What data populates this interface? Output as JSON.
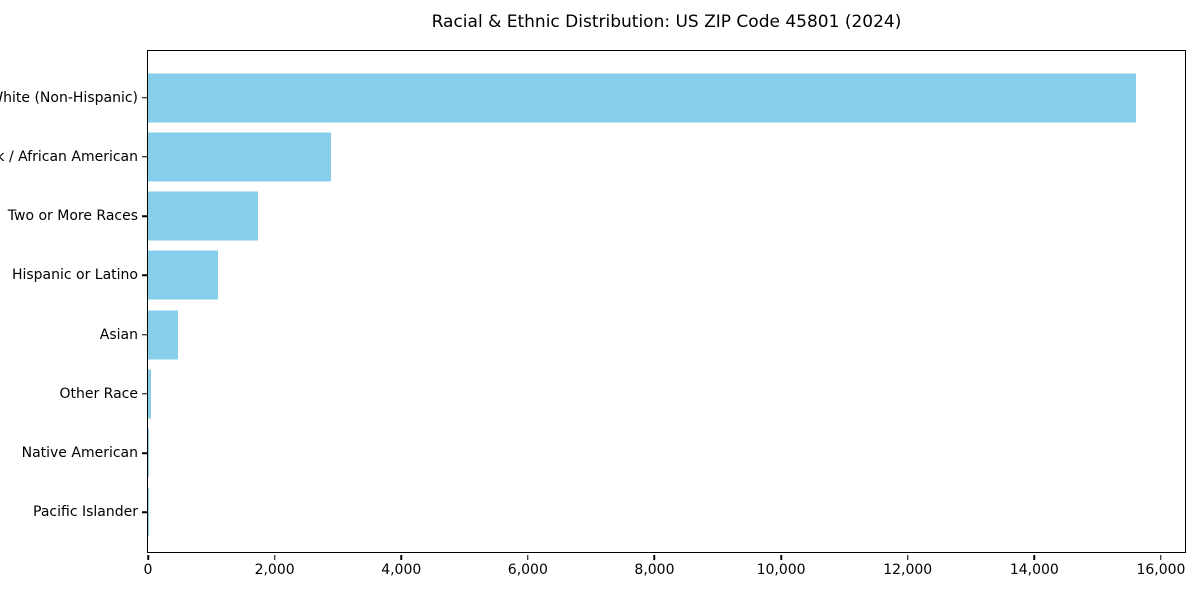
{
  "chart_data": {
    "type": "bar",
    "orientation": "horizontal",
    "title": "Racial & Ethnic Distribution: US ZIP Code 45801 (2024)",
    "categories": [
      "White (Non-Hispanic)",
      "Black / African American",
      "Two or More Races",
      "Hispanic or Latino",
      "Asian",
      "Other Race",
      "Native American",
      "Pacific Islander"
    ],
    "values": [
      15600,
      2890,
      1740,
      1110,
      470,
      50,
      20,
      10
    ],
    "xlabel": "",
    "ylabel": "",
    "xlim": [
      0,
      16380
    ],
    "x_ticks": [
      0,
      2000,
      4000,
      6000,
      8000,
      10000,
      12000,
      14000,
      16000
    ],
    "x_tick_labels": [
      "0",
      "2,000",
      "4,000",
      "6,000",
      "8,000",
      "10,000",
      "12,000",
      "14,000",
      "16,000"
    ],
    "bar_color": "#87CEEB",
    "axis_color": "#000000",
    "background_color": "#ffffff",
    "grid": false,
    "legend": null
  }
}
